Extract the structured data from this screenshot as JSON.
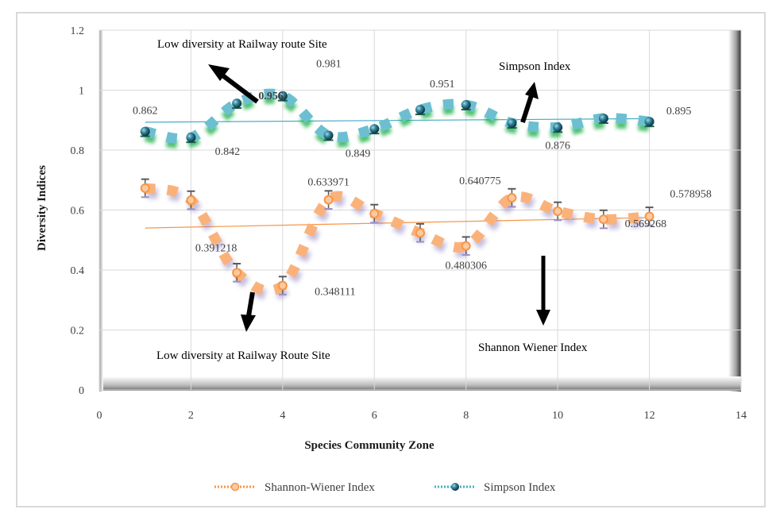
{
  "chart_data": {
    "type": "line",
    "title": "",
    "xlabel": "Species Community Zone",
    "ylabel": "Diversity Indices",
    "xlim": [
      0,
      14
    ],
    "ylim": [
      0,
      1.2
    ],
    "x_ticks": [
      "0",
      "2",
      "4",
      "6",
      "8",
      "10",
      "12",
      "14"
    ],
    "y_ticks": [
      "0",
      "0.2",
      "0.4",
      "0.6",
      "0.8",
      "1",
      "1.2"
    ],
    "grid": true,
    "legend_position": "bottom",
    "x": [
      1,
      2,
      3,
      4,
      5,
      6,
      7,
      8,
      9,
      10,
      11,
      12
    ],
    "series": [
      {
        "name": "Shannon-Wiener Index",
        "color": "#f79646",
        "values": [
          0.673,
          0.633,
          0.391218,
          0.348111,
          0.633971,
          0.588,
          0.524,
          0.480306,
          0.640775,
          0.596,
          0.569268,
          0.578958
        ],
        "error": 0.03,
        "trendline": [
          0.54,
          0.575
        ]
      },
      {
        "name": "Simpson Index",
        "color": "#4bacc6",
        "values": [
          0.862,
          0.842,
          0.956,
          0.981,
          0.849,
          0.871,
          0.935,
          0.951,
          0.89,
          0.876,
          0.906,
          0.895
        ],
        "trendline": [
          0.893,
          0.905
        ]
      }
    ],
    "data_labels": [
      {
        "text": "0.862",
        "series": "Simpson Index",
        "x": 1
      },
      {
        "text": "0.842",
        "series": "Simpson Index",
        "x": 2
      },
      {
        "text": "0.956",
        "series": "Simpson Index",
        "x": 3
      },
      {
        "text": "0.981",
        "series": "Simpson Index",
        "x": 4
      },
      {
        "text": "0.849",
        "series": "Simpson Index",
        "x": 5
      },
      {
        "text": "0.951",
        "series": "Simpson Index",
        "x": 8
      },
      {
        "text": "0.876",
        "series": "Simpson Index",
        "x": 10
      },
      {
        "text": "0.895",
        "series": "Simpson Index",
        "x": 12
      },
      {
        "text": "0.391218",
        "series": "Shannon-Wiener Index",
        "x": 3
      },
      {
        "text": "0.348111",
        "series": "Shannon-Wiener Index",
        "x": 4
      },
      {
        "text": "0.633971",
        "series": "Shannon-Wiener Index",
        "x": 5
      },
      {
        "text": "0.480306",
        "series": "Shannon-Wiener Index",
        "x": 8
      },
      {
        "text": "0.640775",
        "series": "Shannon-Wiener Index",
        "x": 9
      },
      {
        "text": "0.569268",
        "series": "Shannon-Wiener Index",
        "x": 11
      },
      {
        "text": "0.578958",
        "series": "Shannon-Wiener Index",
        "x": 12
      }
    ],
    "annotations": [
      {
        "text": "Low diversity at Railway route Site",
        "arrow": "up-left"
      },
      {
        "text": "Simpson Index",
        "arrow": "up"
      },
      {
        "text": "Low diversity at Railway Route Site",
        "arrow": "down"
      },
      {
        "text": "Shannon Wiener Index",
        "arrow": "down"
      }
    ]
  }
}
